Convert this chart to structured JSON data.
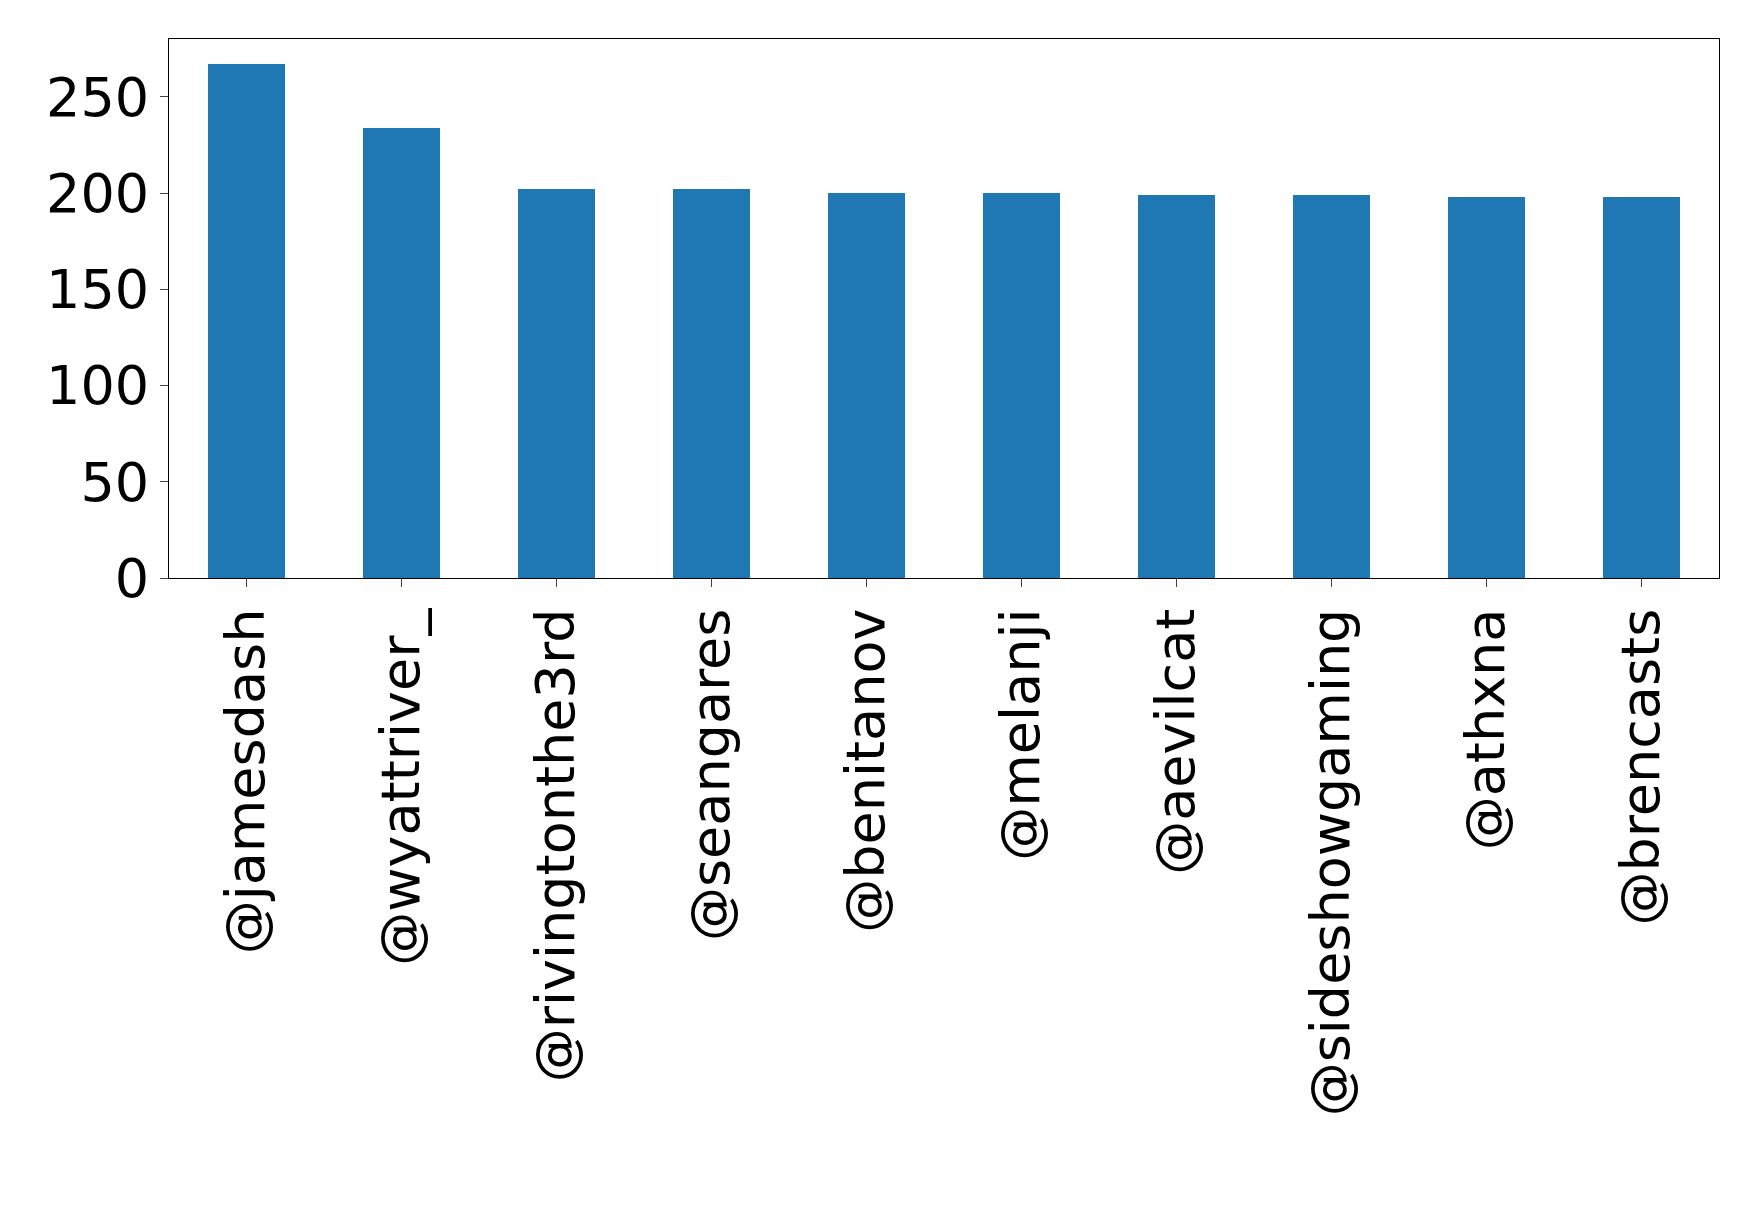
{
  "chart_data": {
    "type": "bar",
    "categories": [
      "@jamesdash",
      "@wyattriver_",
      "@rivingtonthe3rd",
      "@seangares",
      "@benitanov",
      "@melanji",
      "@aevilcat",
      "@sideshowgaming",
      "@athxna",
      "@brencasts"
    ],
    "values": [
      267,
      234,
      202,
      202,
      200,
      200,
      199,
      199,
      198,
      198
    ],
    "color": "#1f77b4",
    "ylim": [
      0,
      280
    ],
    "yticks": [
      0,
      50,
      100,
      150,
      200,
      250
    ]
  }
}
